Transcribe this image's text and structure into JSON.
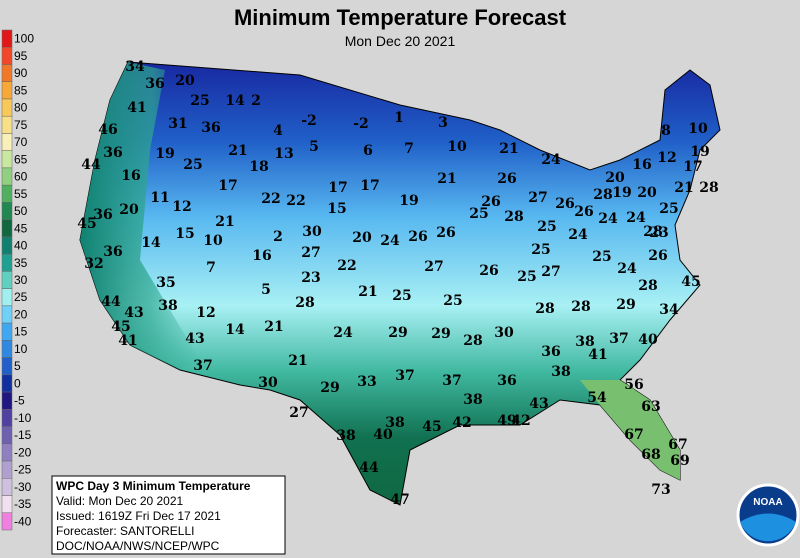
{
  "header": {
    "title": "Minimum Temperature Forecast",
    "subtitle": "Mon Dec 20 2021"
  },
  "legend": {
    "items": [
      {
        "value": 100,
        "color": "#e01818"
      },
      {
        "value": 95,
        "color": "#f04828"
      },
      {
        "value": 90,
        "color": "#f07828"
      },
      {
        "value": 85,
        "color": "#f8a838"
      },
      {
        "value": 80,
        "color": "#f8c858"
      },
      {
        "value": 75,
        "color": "#f8e088"
      },
      {
        "value": 70,
        "color": "#f8f0b8"
      },
      {
        "value": 65,
        "color": "#c8e8a0"
      },
      {
        "value": 60,
        "color": "#90d080"
      },
      {
        "value": 55,
        "color": "#50b060"
      },
      {
        "value": 50,
        "color": "#208850"
      },
      {
        "value": 45,
        "color": "#106840"
      },
      {
        "value": 40,
        "color": "#108070"
      },
      {
        "value": 35,
        "color": "#20a090"
      },
      {
        "value": 30,
        "color": "#60d0c0"
      },
      {
        "value": 25,
        "color": "#a0f0f0"
      },
      {
        "value": 20,
        "color": "#70d0f8"
      },
      {
        "value": 15,
        "color": "#40a8f0"
      },
      {
        "value": 10,
        "color": "#3088e0"
      },
      {
        "value": 5,
        "color": "#2060c8"
      },
      {
        "value": 0,
        "color": "#1030a0"
      },
      {
        "value": -5,
        "color": "#201880"
      },
      {
        "value": -10,
        "color": "#5040a0"
      },
      {
        "value": -15,
        "color": "#7060b0"
      },
      {
        "value": -20,
        "color": "#9080c0"
      },
      {
        "value": -25,
        "color": "#b0a0d0"
      },
      {
        "value": -30,
        "color": "#d0c0e0"
      },
      {
        "value": -35,
        "color": "#f0e0f0"
      },
      {
        "value": -40,
        "color": "#f080e0"
      }
    ]
  },
  "temperatures": [
    34,
    36,
    20,
    25,
    14,
    2,
    41,
    31,
    36,
    4,
    -2,
    -2,
    1,
    3,
    8,
    10,
    46,
    36,
    19,
    21,
    13,
    5,
    6,
    7,
    10,
    21,
    24,
    16,
    12,
    19,
    44,
    25,
    18,
    17,
    20,
    16,
    17,
    17,
    17,
    21,
    26,
    28,
    19,
    21,
    28,
    11,
    22,
    22,
    19,
    26,
    27,
    26,
    20,
    45,
    36,
    20,
    12,
    15,
    25,
    28,
    26,
    24,
    25,
    21,
    25,
    24,
    28,
    23,
    14,
    15,
    10,
    2,
    30,
    20,
    24,
    26,
    26,
    24,
    36,
    16,
    27,
    25,
    26,
    32,
    7,
    22,
    27,
    26,
    25,
    27,
    25,
    24,
    45,
    23,
    28,
    35,
    5,
    21,
    25,
    25,
    44,
    38,
    28,
    28,
    28,
    29,
    34,
    43,
    12,
    45,
    14,
    21,
    24,
    29,
    29,
    28,
    30,
    43,
    41,
    37,
    40,
    38,
    36,
    41,
    21,
    37,
    38,
    37,
    33,
    37,
    36,
    56,
    30,
    29,
    38,
    54,
    63,
    43,
    42,
    49,
    27,
    38,
    45,
    42,
    67,
    67,
    38,
    40,
    68,
    69,
    44,
    73,
    47
  ],
  "info_box": {
    "title": "WPC Day 3 Minimum Temperature",
    "lines": [
      "Valid: Mon Dec 20 2021",
      "Issued: 1619Z Fri Dec 17 2021",
      "Forecaster: SANTORELLI",
      "DOC/NOAA/NWS/NCEP/WPC"
    ]
  },
  "logo": {
    "text": "NOAA"
  }
}
